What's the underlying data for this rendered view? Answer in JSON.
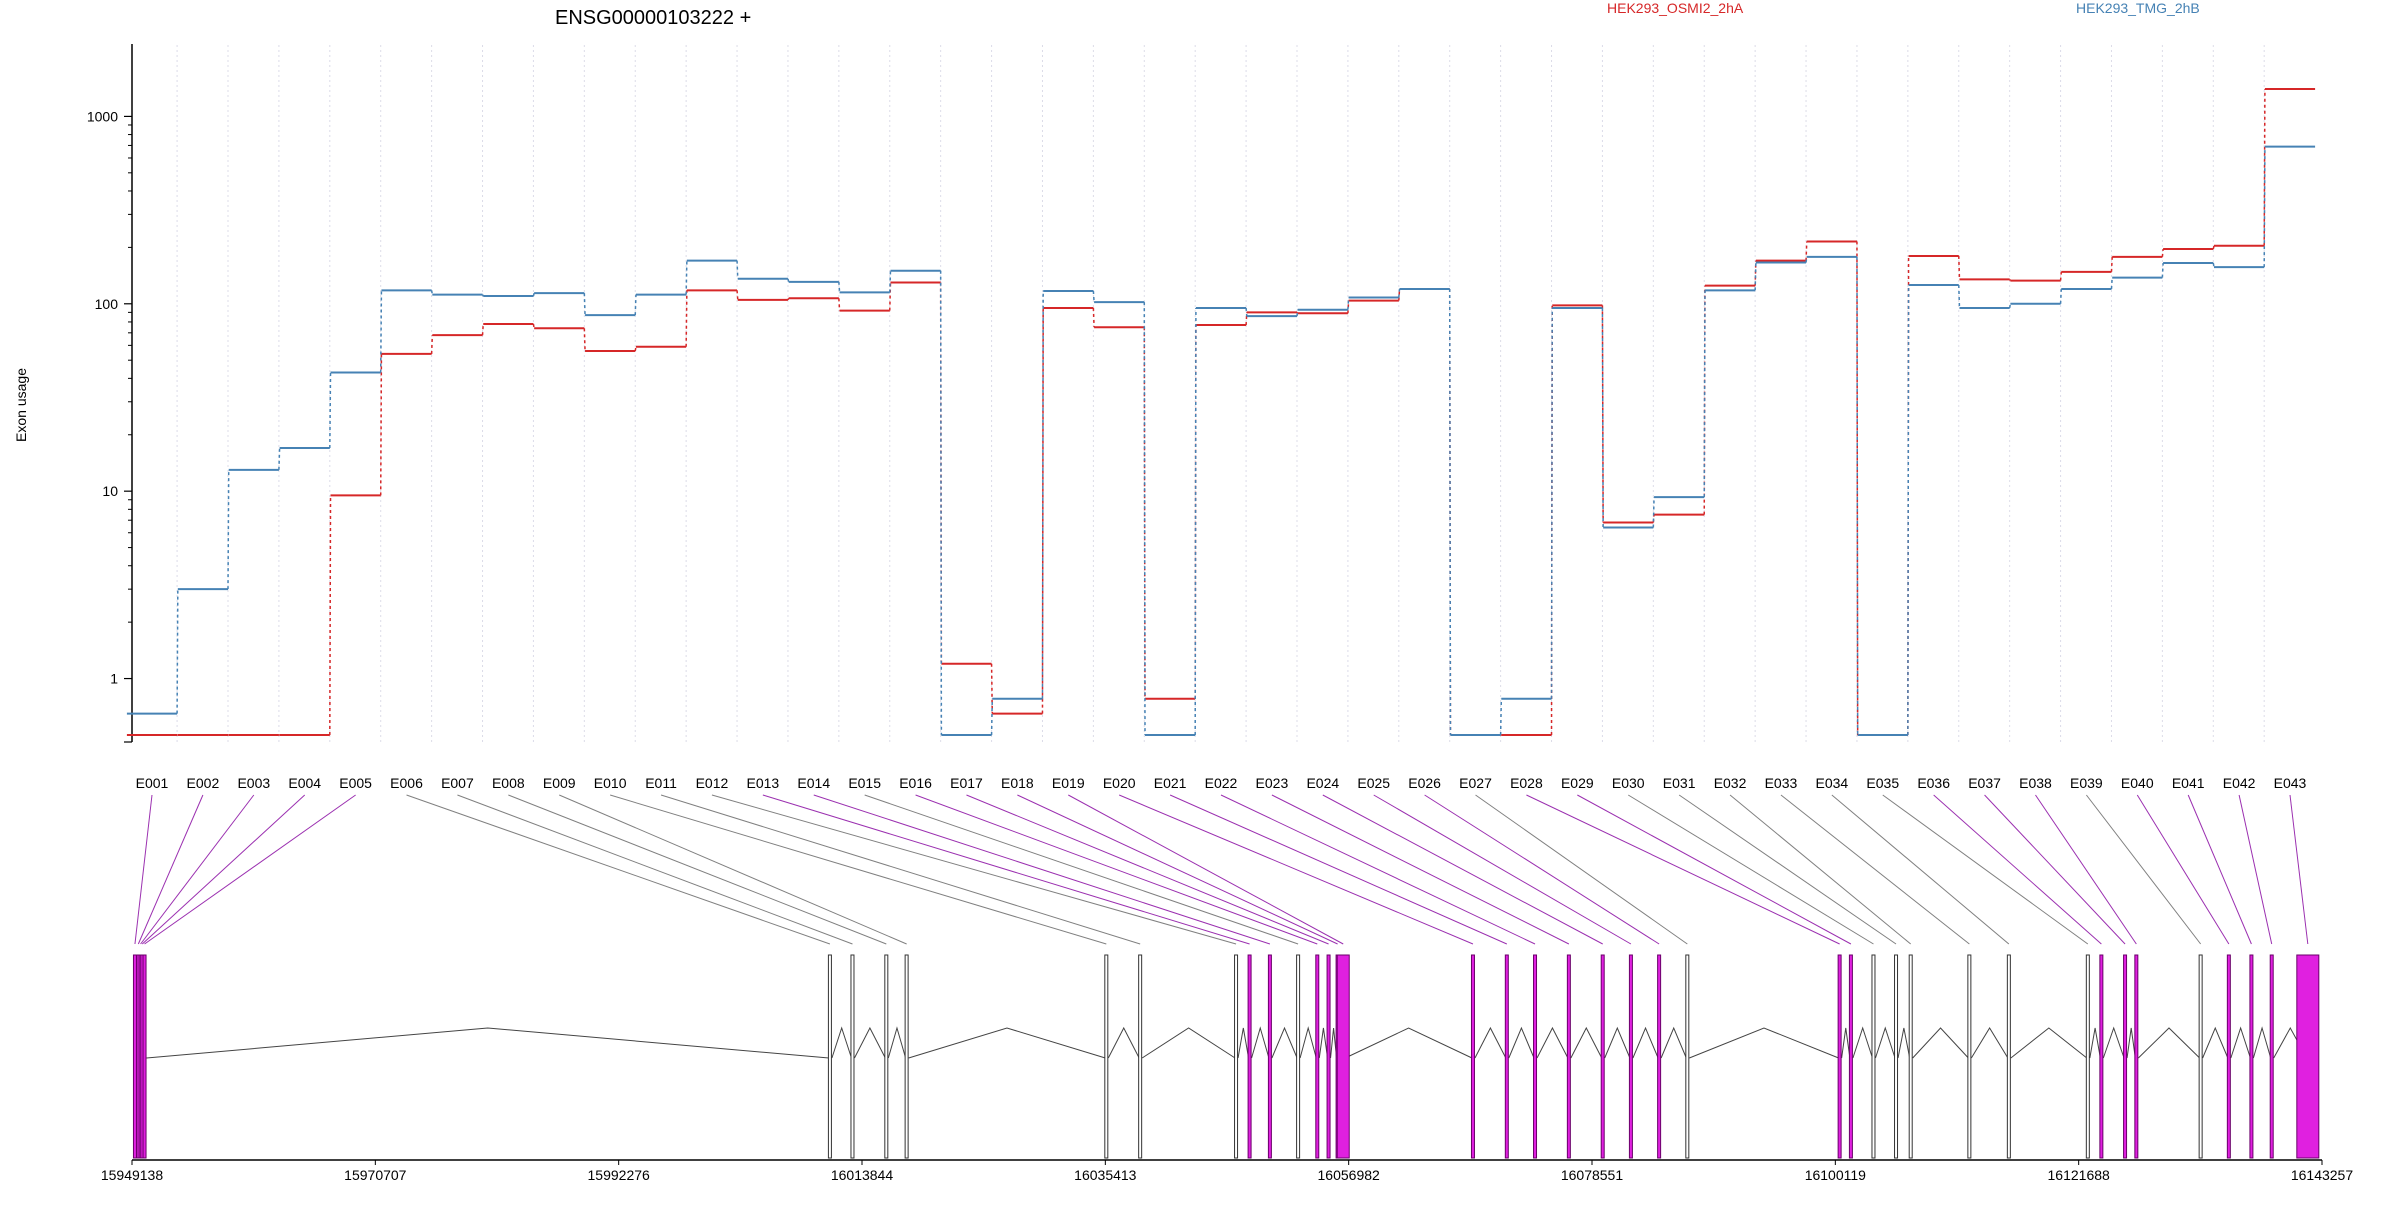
{
  "chart_data": {
    "type": "line",
    "title": "ENSG00000103222 +",
    "ylabel": "Exon usage",
    "y_scale": "log",
    "y_ticks": [
      1,
      10,
      100,
      1000
    ],
    "y_tick_labels": [
      "1",
      "10",
      "100",
      "1000"
    ],
    "ylim": [
      0.47,
      2000
    ],
    "grid": "vertical dotted",
    "categories": [
      "E001",
      "E002",
      "E003",
      "E004",
      "E005",
      "E006",
      "E007",
      "E008",
      "E009",
      "E010",
      "E011",
      "E012",
      "E013",
      "E014",
      "E015",
      "E016",
      "E017",
      "E018",
      "E019",
      "E020",
      "E021",
      "E022",
      "E023",
      "E024",
      "E025",
      "E026",
      "E027",
      "E028",
      "E029",
      "E030",
      "E031",
      "E032",
      "E033",
      "E034",
      "E035",
      "E036",
      "E037",
      "E038",
      "E039",
      "E040",
      "E041",
      "E042",
      "E043"
    ],
    "series": [
      {
        "name": "HEK293_OSMI2_2hA",
        "color": "#d62728",
        "values": [
          0.5,
          0.5,
          0.5,
          0.5,
          9.5,
          54,
          68,
          78,
          74,
          56,
          59,
          118,
          105,
          107,
          92,
          130,
          1.2,
          0.65,
          95,
          75,
          0.78,
          77,
          90,
          89,
          104,
          120,
          0.5,
          0.5,
          98,
          6.8,
          7.5,
          125,
          170,
          215,
          0.5,
          180,
          135,
          133,
          148,
          178,
          196,
          204,
          1400
        ]
      },
      {
        "name": "HEK293_TMG_2hB",
        "color": "#4682b4",
        "values": [
          0.65,
          3,
          13,
          17,
          43,
          118,
          112,
          110,
          114,
          87,
          112,
          170,
          136,
          131,
          115,
          150,
          0.5,
          0.78,
          117,
          102,
          0.5,
          95,
          86,
          93,
          108,
          120,
          0.5,
          0.78,
          95,
          6.4,
          9.3,
          118,
          166,
          178,
          0.5,
          126,
          95,
          100,
          120,
          138,
          165,
          157,
          690
        ]
      }
    ],
    "gene_model": {
      "coordinate_labels": [
        "15949138",
        "15970707",
        "15992276",
        "16013844",
        "16035413",
        "16056982",
        "16078551",
        "16100119",
        "16121688",
        "16143257"
      ]
    }
  },
  "colors": {
    "series1": "#d62728",
    "series2": "#4682b4",
    "exon_highlight": "#e020e0",
    "connector_highlight": "#9b30b0",
    "connector_plain": "#808080"
  }
}
